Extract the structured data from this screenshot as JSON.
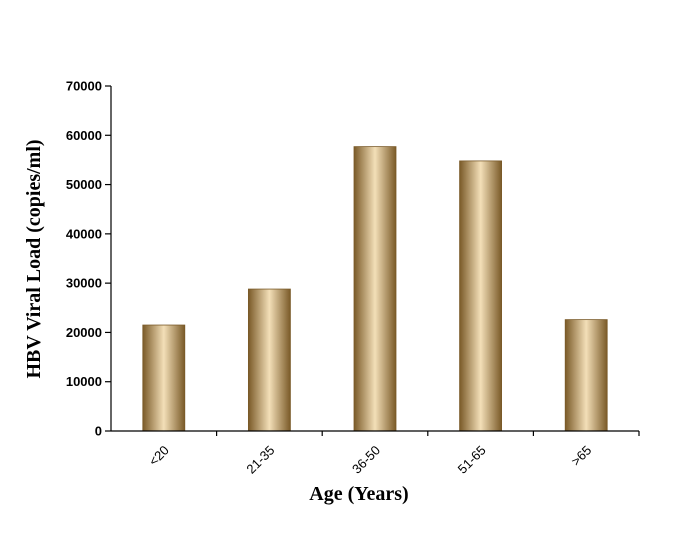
{
  "chart_data": {
    "type": "bar",
    "title": "",
    "xlabel": "Age (Years)",
    "ylabel": "HBV Viral Load (copies/ml)",
    "categories": [
      "<20",
      "21-35",
      "36-50",
      "51-65",
      ">65"
    ],
    "values": [
      21500,
      28800,
      57700,
      54800,
      22600
    ],
    "ylim": [
      0,
      70000
    ],
    "yticks": [
      0,
      10000,
      20000,
      30000,
      40000,
      50000,
      60000,
      70000
    ],
    "grid": false,
    "legend": "none",
    "bar_colors": {
      "dark": "#7a5a28",
      "mid": "#c9a46e",
      "light": "#f3dfb8"
    }
  }
}
